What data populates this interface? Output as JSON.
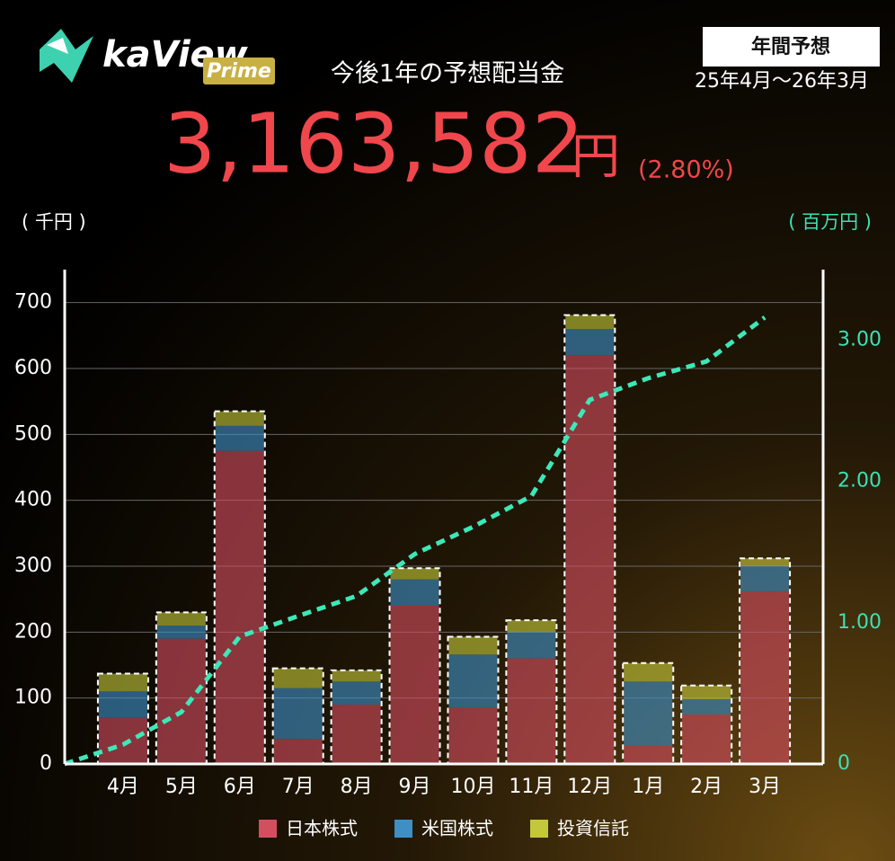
{
  "logo": {
    "name": "kaView",
    "badge": "Prime"
  },
  "header": {
    "period_badge": "年間予想",
    "period": "25年4月～26年3月",
    "total": "3,163,582",
    "total_unit": "円",
    "yield": "(2.80%)"
  },
  "chart_data": {
    "type": "bar",
    "title": "今後1年の予想配当金",
    "stacked": true,
    "y_label": "( 千円 )",
    "y2_label": "( 百万円 )",
    "categories": [
      null,
      "4月",
      "5月",
      "6月",
      "7月",
      "8月",
      "9月",
      "10月",
      "11月",
      "12月",
      "1月",
      "2月",
      "3月"
    ],
    "series": [
      {
        "name": "日本株式",
        "color": "#d44e60",
        "values": [
          null,
          70,
          190,
          475,
          38,
          90,
          240,
          86,
          160,
          620,
          28,
          75,
          262
        ]
      },
      {
        "name": "米国株式",
        "color": "#3d8fc6",
        "values": [
          null,
          40,
          20,
          38,
          77,
          35,
          40,
          80,
          40,
          40,
          97,
          23,
          38
        ]
      },
      {
        "name": "投資信託",
        "color": "#c3c83a",
        "values": [
          null,
          27,
          20,
          22,
          30,
          17,
          17,
          27,
          18,
          21,
          28,
          21,
          12
        ]
      },
      {
        "type": "line",
        "axis": "y2",
        "color": "#3de8b8",
        "values": [
          0,
          0.137,
          0.367,
          0.902,
          1.047,
          1.189,
          1.486,
          1.679,
          1.897,
          2.578,
          2.731,
          2.85,
          3.162
        ]
      }
    ],
    "ylim": [
      0,
      750
    ],
    "yticks": [
      0,
      100,
      200,
      300,
      400,
      500,
      600,
      700
    ],
    "y2lim": [
      0,
      3.5
    ],
    "y2ticks": [
      0,
      {
        "value": 1,
        "label": "1.00"
      },
      {
        "value": 2,
        "label": "2.00"
      },
      {
        "value": 3,
        "label": "3.00"
      }
    ],
    "grid": true
  }
}
